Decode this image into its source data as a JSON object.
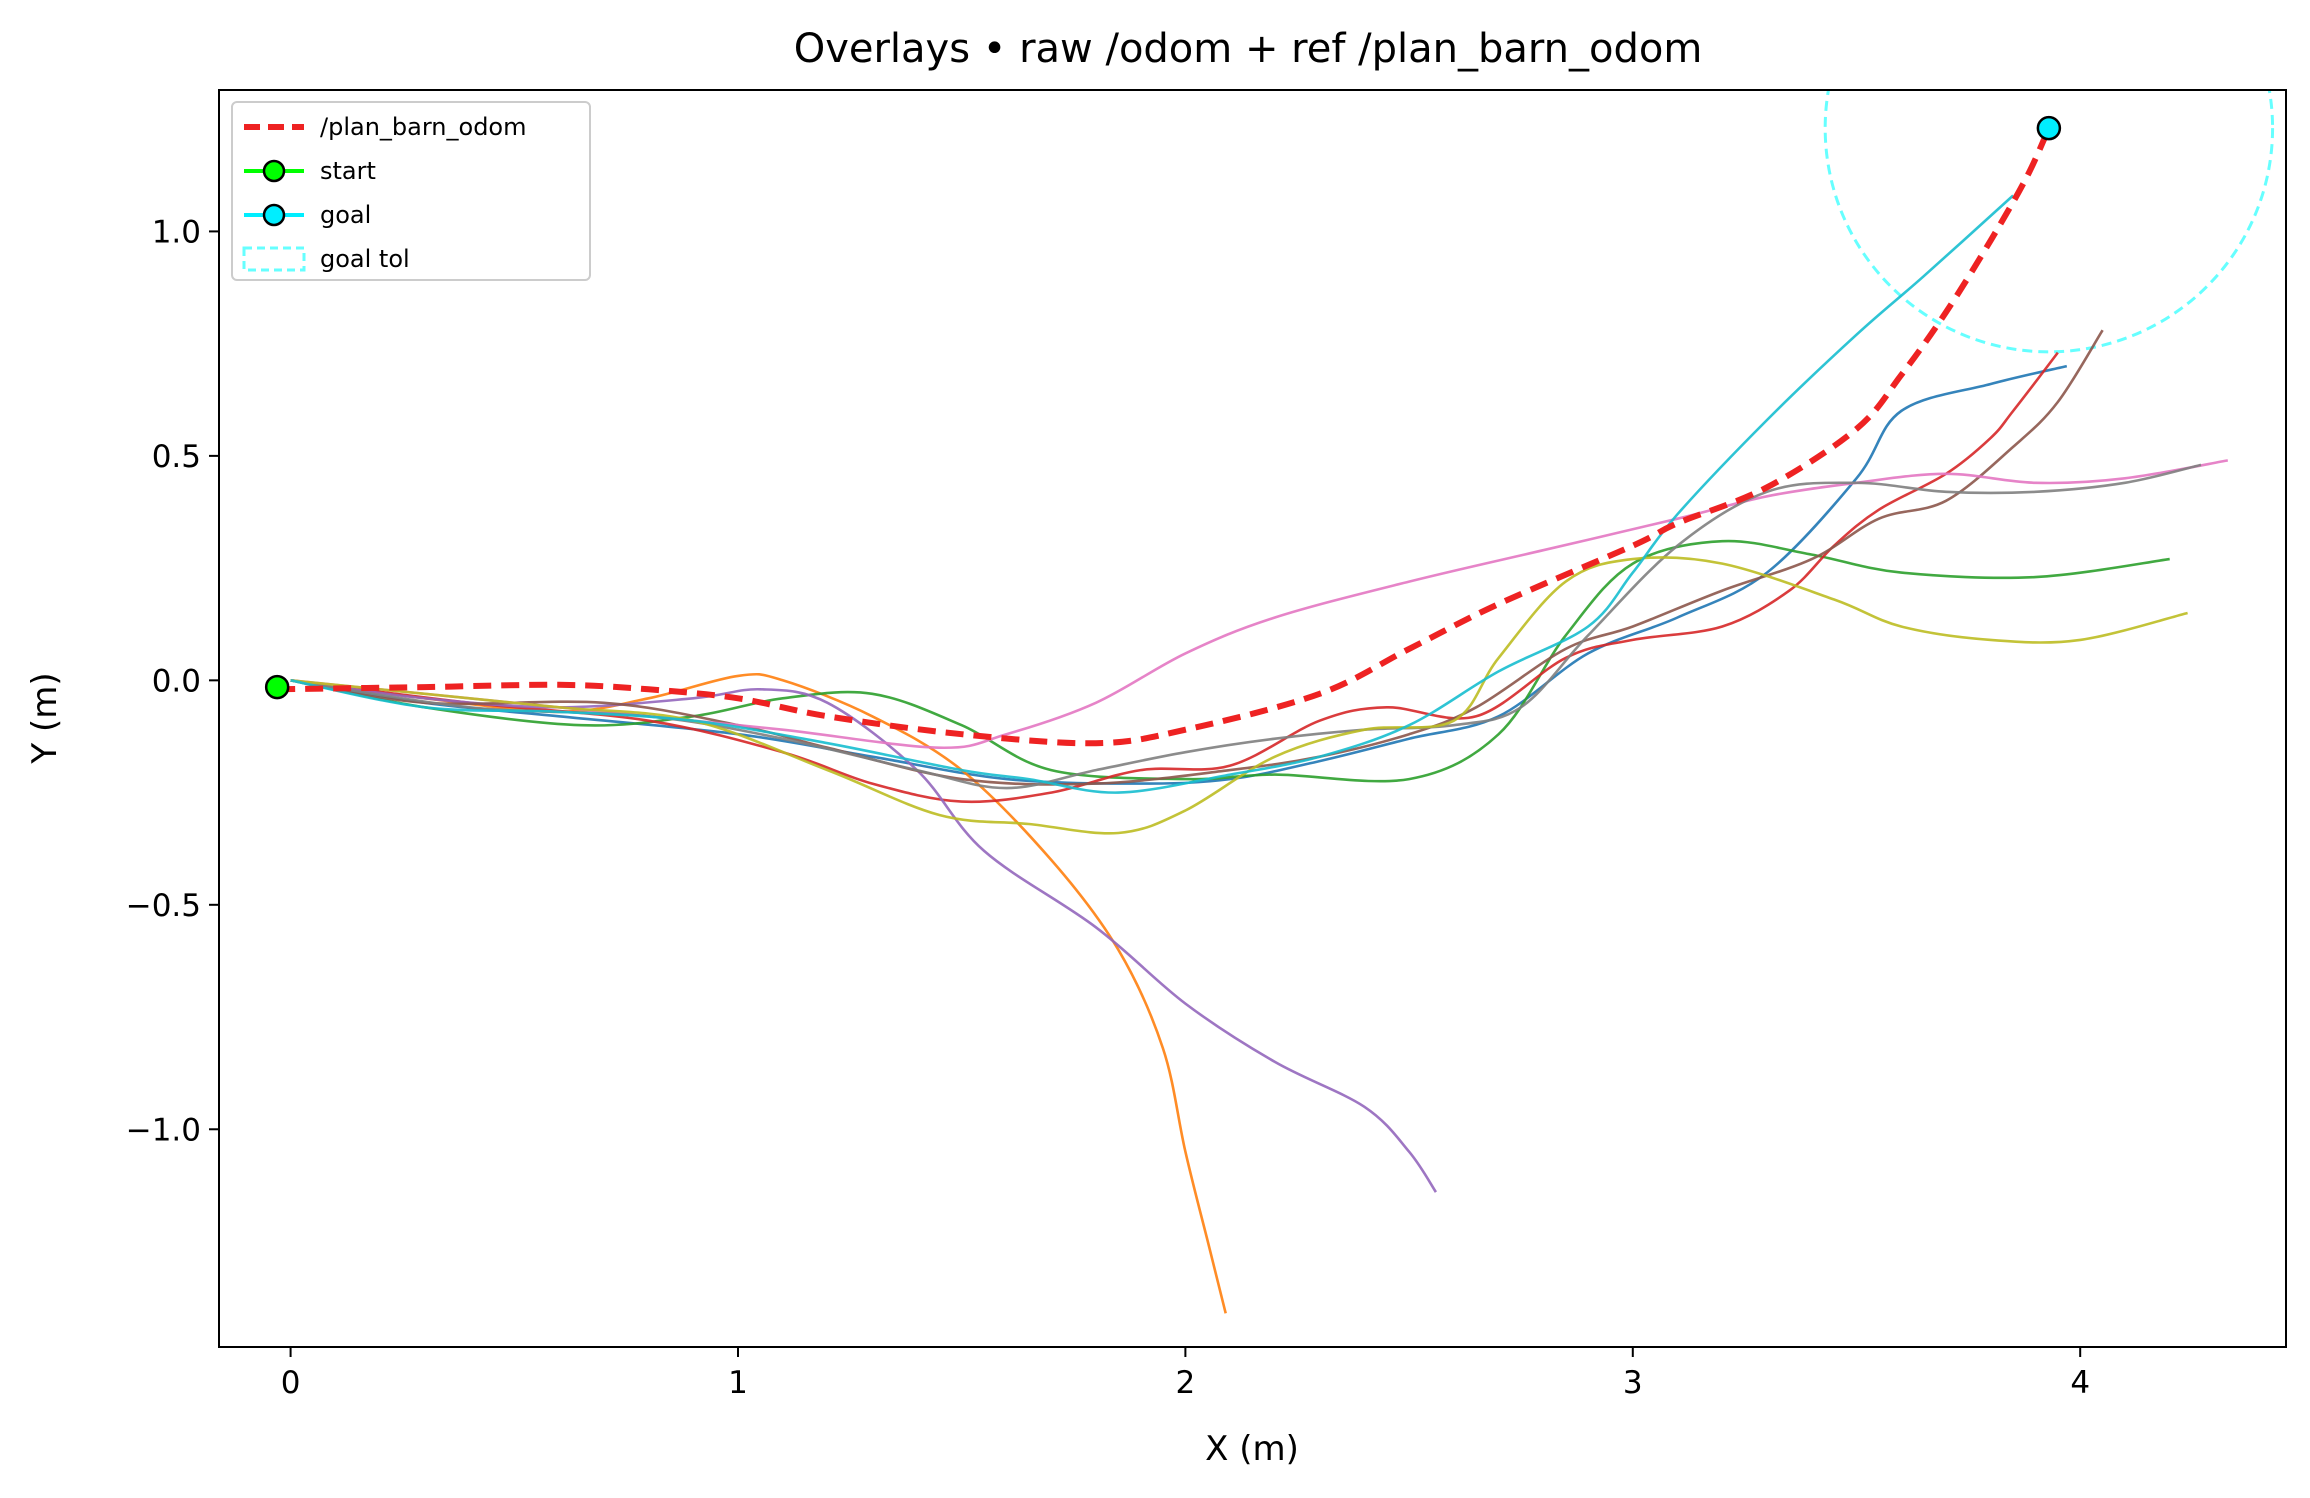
{
  "chart_data": {
    "type": "line",
    "title": "Overlays • raw /odom + ref /plan_barn_odom",
    "xlabel": "X (m)",
    "ylabel": "Y (m)",
    "xlim": [
      -0.16,
      4.46
    ],
    "ylim": [
      -1.485,
      1.315
    ],
    "xticks": [
      0,
      1,
      2,
      3,
      4
    ],
    "yticks": [
      1.0,
      0.5,
      0.0,
      -0.5,
      -1.0
    ],
    "xtick_labels": [
      "0",
      "1",
      "2",
      "3",
      "4"
    ],
    "ytick_labels": [
      "1.0",
      "0.5",
      "0.0",
      "−0.5",
      "−1.0"
    ],
    "grid": false,
    "legend_position": "top-left",
    "legend": [
      {
        "label": "/plan_barn_odom",
        "kind": "dashed-line",
        "color": "#ee2222"
      },
      {
        "label": "start",
        "kind": "line-marker",
        "color": "#00ff00"
      },
      {
        "label": "goal",
        "kind": "line-marker",
        "color": "#00eeff"
      },
      {
        "label": "goal tol",
        "kind": "dashed-patch",
        "color": "#66ffff"
      }
    ],
    "reference_path": {
      "name": "/plan_barn_odom",
      "color": "#ee2222",
      "points": [
        [
          -0.03,
          -0.02
        ],
        [
          0.3,
          -0.015
        ],
        [
          0.6,
          -0.01
        ],
        [
          0.8,
          -0.02
        ],
        [
          1.0,
          -0.04
        ],
        [
          1.2,
          -0.08
        ],
        [
          1.5,
          -0.12
        ],
        [
          1.8,
          -0.14
        ],
        [
          2.0,
          -0.11
        ],
        [
          2.3,
          -0.03
        ],
        [
          2.5,
          0.07
        ],
        [
          2.7,
          0.17
        ],
        [
          3.0,
          0.3
        ],
        [
          3.1,
          0.35
        ],
        [
          3.3,
          0.43
        ],
        [
          3.5,
          0.56
        ],
        [
          3.6,
          0.68
        ],
        [
          3.7,
          0.82
        ],
        [
          3.8,
          0.98
        ],
        [
          3.88,
          1.12
        ],
        [
          3.93,
          1.23
        ]
      ]
    },
    "start": {
      "label": "start",
      "x": -0.03,
      "y": -0.015,
      "color": "#00ff00"
    },
    "goal": {
      "label": "goal",
      "x": 3.93,
      "y": 1.23,
      "color": "#00eeff"
    },
    "goal_tolerance": {
      "label": "goal tol",
      "center": [
        3.93,
        1.23
      ],
      "radius": 0.5,
      "color": "#66ffff"
    },
    "series": [
      {
        "name": "",
        "color": "#1f77b4",
        "points": [
          [
            0,
            0
          ],
          [
            0.3,
            -0.05
          ],
          [
            0.6,
            -0.08
          ],
          [
            1,
            -0.12
          ],
          [
            1.3,
            -0.17
          ],
          [
            1.6,
            -0.22
          ],
          [
            1.9,
            -0.23
          ],
          [
            2.1,
            -0.22
          ],
          [
            2.3,
            -0.18
          ],
          [
            2.5,
            -0.13
          ],
          [
            2.7,
            -0.08
          ],
          [
            2.9,
            0.06
          ],
          [
            3.1,
            0.14
          ],
          [
            3.3,
            0.24
          ],
          [
            3.5,
            0.45
          ],
          [
            3.6,
            0.6
          ],
          [
            3.8,
            0.66
          ],
          [
            3.97,
            0.7
          ]
        ]
      },
      {
        "name": "",
        "color": "#ff7f0e",
        "points": [
          [
            0,
            0
          ],
          [
            0.3,
            -0.04
          ],
          [
            0.6,
            -0.07
          ],
          [
            0.8,
            -0.04
          ],
          [
            1,
            0.01
          ],
          [
            1.1,
            0
          ],
          [
            1.3,
            -0.08
          ],
          [
            1.5,
            -0.2
          ],
          [
            1.7,
            -0.4
          ],
          [
            1.85,
            -0.6
          ],
          [
            1.95,
            -0.82
          ],
          [
            2,
            -1.05
          ],
          [
            2.05,
            -1.25
          ],
          [
            2.09,
            -1.41
          ]
        ]
      },
      {
        "name": "",
        "color": "#2ca02c",
        "points": [
          [
            0,
            0
          ],
          [
            0.3,
            -0.06
          ],
          [
            0.65,
            -0.1
          ],
          [
            0.9,
            -0.08
          ],
          [
            1.1,
            -0.04
          ],
          [
            1.3,
            -0.03
          ],
          [
            1.5,
            -0.1
          ],
          [
            1.7,
            -0.2
          ],
          [
            2,
            -0.22
          ],
          [
            2.2,
            -0.21
          ],
          [
            2.5,
            -0.22
          ],
          [
            2.7,
            -0.12
          ],
          [
            2.85,
            0.1
          ],
          [
            3,
            0.26
          ],
          [
            3.2,
            0.31
          ],
          [
            3.4,
            0.28
          ],
          [
            3.6,
            0.24
          ],
          [
            3.9,
            0.23
          ],
          [
            4.2,
            0.27
          ]
        ]
      },
      {
        "name": "",
        "color": "#d62728",
        "points": [
          [
            0,
            0
          ],
          [
            0.4,
            -0.05
          ],
          [
            0.8,
            -0.09
          ],
          [
            1.1,
            -0.16
          ],
          [
            1.3,
            -0.23
          ],
          [
            1.5,
            -0.27
          ],
          [
            1.7,
            -0.25
          ],
          [
            1.9,
            -0.2
          ],
          [
            2.1,
            -0.19
          ],
          [
            2.3,
            -0.09
          ],
          [
            2.45,
            -0.06
          ],
          [
            2.65,
            -0.08
          ],
          [
            2.85,
            0.05
          ],
          [
            3,
            0.09
          ],
          [
            3.2,
            0.12
          ],
          [
            3.35,
            0.2
          ],
          [
            3.45,
            0.3
          ],
          [
            3.55,
            0.38
          ],
          [
            3.7,
            0.46
          ],
          [
            3.8,
            0.54
          ],
          [
            3.85,
            0.6
          ],
          [
            3.95,
            0.73
          ]
        ]
      },
      {
        "name": "",
        "color": "#9467bd",
        "points": [
          [
            0,
            0
          ],
          [
            0.3,
            -0.04
          ],
          [
            0.6,
            -0.06
          ],
          [
            0.9,
            -0.04
          ],
          [
            1.05,
            -0.02
          ],
          [
            1.2,
            -0.05
          ],
          [
            1.4,
            -0.2
          ],
          [
            1.55,
            -0.38
          ],
          [
            1.8,
            -0.55
          ],
          [
            2,
            -0.72
          ],
          [
            2.2,
            -0.85
          ],
          [
            2.4,
            -0.95
          ],
          [
            2.5,
            -1.05
          ],
          [
            2.56,
            -1.14
          ]
        ]
      },
      {
        "name": "",
        "color": "#8c564b",
        "points": [
          [
            0,
            0
          ],
          [
            0.3,
            -0.05
          ],
          [
            0.7,
            -0.05
          ],
          [
            1,
            -0.1
          ],
          [
            1.2,
            -0.15
          ],
          [
            1.5,
            -0.22
          ],
          [
            1.8,
            -0.23
          ],
          [
            2.1,
            -0.2
          ],
          [
            2.3,
            -0.17
          ],
          [
            2.5,
            -0.12
          ],
          [
            2.65,
            -0.06
          ],
          [
            2.85,
            0.07
          ],
          [
            3,
            0.12
          ],
          [
            3.2,
            0.2
          ],
          [
            3.4,
            0.27
          ],
          [
            3.55,
            0.36
          ],
          [
            3.7,
            0.4
          ],
          [
            3.85,
            0.52
          ],
          [
            3.95,
            0.62
          ],
          [
            4.05,
            0.78
          ]
        ]
      },
      {
        "name": "",
        "color": "#e377c2",
        "points": [
          [
            0,
            0
          ],
          [
            0.4,
            -0.04
          ],
          [
            0.8,
            -0.08
          ],
          [
            1.1,
            -0.11
          ],
          [
            1.45,
            -0.15
          ],
          [
            1.6,
            -0.12
          ],
          [
            1.8,
            -0.05
          ],
          [
            2,
            0.06
          ],
          [
            2.2,
            0.14
          ],
          [
            2.5,
            0.22
          ],
          [
            2.8,
            0.29
          ],
          [
            3.1,
            0.36
          ],
          [
            3.3,
            0.41
          ],
          [
            3.5,
            0.44
          ],
          [
            3.7,
            0.46
          ],
          [
            3.9,
            0.44
          ],
          [
            4.1,
            0.45
          ],
          [
            4.33,
            0.49
          ]
        ]
      },
      {
        "name": "",
        "color": "#7f7f7f",
        "points": [
          [
            0,
            0
          ],
          [
            0.4,
            -0.06
          ],
          [
            0.8,
            -0.08
          ],
          [
            1.1,
            -0.13
          ],
          [
            1.4,
            -0.2
          ],
          [
            1.6,
            -0.24
          ],
          [
            1.8,
            -0.2
          ],
          [
            2,
            -0.16
          ],
          [
            2.2,
            -0.13
          ],
          [
            2.4,
            -0.11
          ],
          [
            2.6,
            -0.1
          ],
          [
            2.75,
            -0.06
          ],
          [
            2.9,
            0.1
          ],
          [
            3.1,
            0.3
          ],
          [
            3.3,
            0.42
          ],
          [
            3.5,
            0.44
          ],
          [
            3.7,
            0.42
          ],
          [
            3.9,
            0.42
          ],
          [
            4.1,
            0.44
          ],
          [
            4.27,
            0.48
          ]
        ]
      },
      {
        "name": "",
        "color": "#bcbd22",
        "points": [
          [
            0,
            0
          ],
          [
            0.3,
            -0.03
          ],
          [
            0.6,
            -0.06
          ],
          [
            0.9,
            -0.09
          ],
          [
            1.2,
            -0.2
          ],
          [
            1.45,
            -0.3
          ],
          [
            1.65,
            -0.32
          ],
          [
            1.85,
            -0.34
          ],
          [
            2,
            -0.29
          ],
          [
            2.2,
            -0.17
          ],
          [
            2.4,
            -0.11
          ],
          [
            2.6,
            -0.09
          ],
          [
            2.7,
            0.05
          ],
          [
            2.85,
            0.22
          ],
          [
            3,
            0.27
          ],
          [
            3.2,
            0.26
          ],
          [
            3.45,
            0.18
          ],
          [
            3.6,
            0.12
          ],
          [
            3.8,
            0.09
          ],
          [
            4,
            0.09
          ],
          [
            4.24,
            0.15
          ]
        ]
      },
      {
        "name": "",
        "color": "#17becf",
        "points": [
          [
            0,
            0
          ],
          [
            0.3,
            -0.06
          ],
          [
            0.6,
            -0.07
          ],
          [
            0.9,
            -0.09
          ],
          [
            1.2,
            -0.14
          ],
          [
            1.5,
            -0.2
          ],
          [
            1.65,
            -0.22
          ],
          [
            1.85,
            -0.25
          ],
          [
            2.1,
            -0.21
          ],
          [
            2.3,
            -0.17
          ],
          [
            2.5,
            -0.1
          ],
          [
            2.7,
            0.02
          ],
          [
            2.9,
            0.12
          ],
          [
            3,
            0.24
          ],
          [
            3.1,
            0.37
          ],
          [
            3.3,
            0.58
          ],
          [
            3.5,
            0.77
          ],
          [
            3.65,
            0.9
          ],
          [
            3.85,
            1.08
          ]
        ]
      }
    ]
  }
}
